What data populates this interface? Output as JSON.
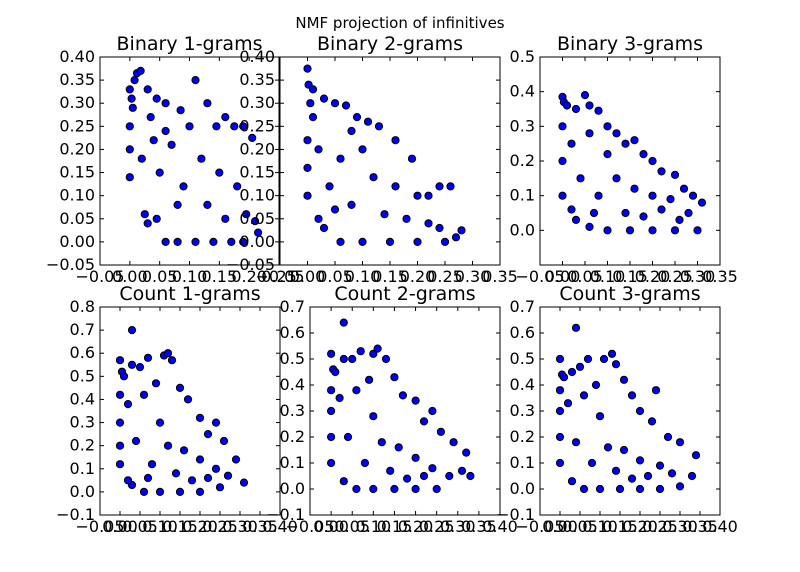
{
  "figure": {
    "title": "NMF projection of infinitives",
    "marker_color": "#0000ff",
    "marker_edge_color": "#000000"
  },
  "chart_data": [
    {
      "type": "scatter",
      "title": "Binary 1-grams",
      "xlabel": "",
      "ylabel": "",
      "xlim": [
        -0.05,
        0.25
      ],
      "ylim": [
        -0.05,
        0.4
      ],
      "xticks": [
        "−0.05",
        "0.00",
        "0.05",
        "0.10",
        "0.15",
        "0.20",
        "0.25"
      ],
      "yticks": [
        "−0.05",
        "0.00",
        "0.05",
        "0.10",
        "0.15",
        "0.20",
        "0.25",
        "0.30",
        "0.35",
        "0.40"
      ],
      "xtick_values": [
        -0.05,
        0.0,
        0.05,
        0.1,
        0.15,
        0.2,
        0.25
      ],
      "ytick_values": [
        -0.05,
        0.0,
        0.05,
        0.1,
        0.15,
        0.2,
        0.25,
        0.3,
        0.35,
        0.4
      ],
      "grid": false,
      "points": [
        [
          0.0,
          0.33
        ],
        [
          0.003,
          0.31
        ],
        [
          0.008,
          0.35
        ],
        [
          0.012,
          0.365
        ],
        [
          0.018,
          0.37
        ],
        [
          0.03,
          0.33
        ],
        [
          0.045,
          0.31
        ],
        [
          0.06,
          0.3
        ],
        [
          0.085,
          0.285
        ],
        [
          0.11,
          0.35
        ],
        [
          0.13,
          0.3
        ],
        [
          0.145,
          0.25
        ],
        [
          0.16,
          0.27
        ],
        [
          0.175,
          0.25
        ],
        [
          0.19,
          0.25
        ],
        [
          0.205,
          0.225
        ],
        [
          0.21,
          0.045
        ],
        [
          0.215,
          0.02
        ],
        [
          0.19,
          0.0
        ],
        [
          0.17,
          0.0
        ],
        [
          0.14,
          0.0
        ],
        [
          0.11,
          0.0
        ],
        [
          0.08,
          0.0
        ],
        [
          0.06,
          0.0
        ],
        [
          0.045,
          0.05
        ],
        [
          0.03,
          0.04
        ],
        [
          0.025,
          0.06
        ],
        [
          0.0,
          0.14
        ],
        [
          0.0,
          0.2
        ],
        [
          0.0,
          0.25
        ],
        [
          0.02,
          0.18
        ],
        [
          0.04,
          0.22
        ],
        [
          0.05,
          0.15
        ],
        [
          0.07,
          0.21
        ],
        [
          0.09,
          0.12
        ],
        [
          0.1,
          0.25
        ],
        [
          0.12,
          0.18
        ],
        [
          0.13,
          0.08
        ],
        [
          0.15,
          0.15
        ],
        [
          0.16,
          0.05
        ],
        [
          0.18,
          0.12
        ],
        [
          0.195,
          0.06
        ],
        [
          0.08,
          0.08
        ],
        [
          0.06,
          0.24
        ],
        [
          0.005,
          0.29
        ],
        [
          0.035,
          0.27
        ]
      ]
    },
    {
      "type": "scatter",
      "title": "Binary 2-grams",
      "xlabel": "",
      "ylabel": "",
      "xlim": [
        -0.05,
        0.35
      ],
      "ylim": [
        -0.05,
        0.4
      ],
      "xticks": [
        "−0.05",
        "0.00",
        "0.05",
        "0.10",
        "0.15",
        "0.20",
        "0.25",
        "0.30",
        "0.35"
      ],
      "yticks": [
        "−0.05",
        "0.00",
        "0.05",
        "0.10",
        "0.15",
        "0.20",
        "0.25",
        "0.30",
        "0.35",
        "0.40"
      ],
      "xtick_values": [
        -0.05,
        0.0,
        0.05,
        0.1,
        0.15,
        0.2,
        0.25,
        0.3,
        0.35
      ],
      "ytick_values": [
        -0.05,
        0.0,
        0.05,
        0.1,
        0.15,
        0.2,
        0.25,
        0.3,
        0.35,
        0.4
      ],
      "grid": false,
      "points": [
        [
          0.0,
          0.375
        ],
        [
          0.002,
          0.34
        ],
        [
          0.005,
          0.3
        ],
        [
          0.01,
          0.33
        ],
        [
          0.03,
          0.31
        ],
        [
          0.05,
          0.3
        ],
        [
          0.07,
          0.295
        ],
        [
          0.09,
          0.27
        ],
        [
          0.11,
          0.26
        ],
        [
          0.13,
          0.25
        ],
        [
          0.16,
          0.22
        ],
        [
          0.19,
          0.18
        ],
        [
          0.22,
          0.1
        ],
        [
          0.24,
          0.12
        ],
        [
          0.26,
          0.12
        ],
        [
          0.28,
          0.025
        ],
        [
          0.27,
          0.01
        ],
        [
          0.25,
          0.0
        ],
        [
          0.2,
          0.0
        ],
        [
          0.15,
          0.0
        ],
        [
          0.1,
          0.0
        ],
        [
          0.06,
          0.0
        ],
        [
          0.03,
          0.03
        ],
        [
          0.02,
          0.05
        ],
        [
          0.0,
          0.1
        ],
        [
          0.0,
          0.16
        ],
        [
          0.0,
          0.22
        ],
        [
          0.02,
          0.2
        ],
        [
          0.04,
          0.12
        ],
        [
          0.06,
          0.18
        ],
        [
          0.08,
          0.08
        ],
        [
          0.1,
          0.2
        ],
        [
          0.12,
          0.14
        ],
        [
          0.14,
          0.06
        ],
        [
          0.16,
          0.12
        ],
        [
          0.18,
          0.05
        ],
        [
          0.2,
          0.1
        ],
        [
          0.22,
          0.04
        ],
        [
          0.24,
          0.03
        ],
        [
          0.08,
          0.24
        ],
        [
          0.05,
          0.07
        ],
        [
          0.01,
          0.27
        ]
      ]
    },
    {
      "type": "scatter",
      "title": "Binary 3-grams",
      "xlabel": "",
      "ylabel": "",
      "xlim": [
        -0.05,
        0.35
      ],
      "ylim": [
        -0.1,
        0.5
      ],
      "xticks": [
        "−0.05",
        "0.00",
        "0.05",
        "0.10",
        "0.15",
        "0.20",
        "0.25",
        "0.30",
        "0.35"
      ],
      "yticks": [
        "0.0",
        "0.1",
        "0.2",
        "0.3",
        "0.4",
        "0.5"
      ],
      "xtick_values": [
        -0.05,
        0.0,
        0.05,
        0.1,
        0.15,
        0.2,
        0.25,
        0.3,
        0.35
      ],
      "ytick_values": [
        0.0,
        0.1,
        0.2,
        0.3,
        0.4,
        0.5
      ],
      "grid": false,
      "points": [
        [
          0.0,
          0.385
        ],
        [
          0.003,
          0.37
        ],
        [
          0.01,
          0.36
        ],
        [
          0.03,
          0.35
        ],
        [
          0.05,
          0.39
        ],
        [
          0.06,
          0.36
        ],
        [
          0.08,
          0.345
        ],
        [
          0.1,
          0.3
        ],
        [
          0.12,
          0.28
        ],
        [
          0.14,
          0.25
        ],
        [
          0.16,
          0.26
        ],
        [
          0.18,
          0.22
        ],
        [
          0.2,
          0.2
        ],
        [
          0.22,
          0.17
        ],
        [
          0.25,
          0.16
        ],
        [
          0.27,
          0.12
        ],
        [
          0.29,
          0.1
        ],
        [
          0.31,
          0.08
        ],
        [
          0.3,
          0.0
        ],
        [
          0.25,
          0.0
        ],
        [
          0.2,
          0.0
        ],
        [
          0.15,
          0.0
        ],
        [
          0.1,
          0.0
        ],
        [
          0.06,
          0.01
        ],
        [
          0.03,
          0.03
        ],
        [
          0.02,
          0.06
        ],
        [
          0.0,
          0.1
        ],
        [
          0.0,
          0.2
        ],
        [
          0.0,
          0.3
        ],
        [
          0.02,
          0.25
        ],
        [
          0.04,
          0.15
        ],
        [
          0.06,
          0.28
        ],
        [
          0.08,
          0.1
        ],
        [
          0.1,
          0.22
        ],
        [
          0.12,
          0.15
        ],
        [
          0.14,
          0.05
        ],
        [
          0.16,
          0.12
        ],
        [
          0.18,
          0.04
        ],
        [
          0.2,
          0.1
        ],
        [
          0.22,
          0.06
        ],
        [
          0.24,
          0.09
        ],
        [
          0.26,
          0.03
        ],
        [
          0.28,
          0.05
        ],
        [
          0.07,
          0.05
        ]
      ]
    },
    {
      "type": "scatter",
      "title": "Count 1-grams",
      "xlabel": "",
      "ylabel": "",
      "xlim": [
        -0.05,
        0.4
      ],
      "ylim": [
        -0.1,
        0.8
      ],
      "xticks": [
        "−0.05",
        "0.00",
        "0.05",
        "0.10",
        "0.15",
        "0.20",
        "0.25",
        "0.30",
        "0.35",
        "0.40"
      ],
      "yticks": [
        "−0.1",
        "0.0",
        "0.1",
        "0.2",
        "0.3",
        "0.4",
        "0.5",
        "0.6",
        "0.7",
        "0.8"
      ],
      "xtick_values": [
        -0.05,
        0.0,
        0.05,
        0.1,
        0.15,
        0.2,
        0.25,
        0.3,
        0.35,
        0.4
      ],
      "ytick_values": [
        -0.1,
        0.0,
        0.1,
        0.2,
        0.3,
        0.4,
        0.5,
        0.6,
        0.7,
        0.8
      ],
      "grid": false,
      "points": [
        [
          0.03,
          0.7
        ],
        [
          0.0,
          0.57
        ],
        [
          0.005,
          0.52
        ],
        [
          0.01,
          0.5
        ],
        [
          0.03,
          0.55
        ],
        [
          0.05,
          0.54
        ],
        [
          0.07,
          0.58
        ],
        [
          0.09,
          0.47
        ],
        [
          0.11,
          0.59
        ],
        [
          0.12,
          0.6
        ],
        [
          0.13,
          0.57
        ],
        [
          0.15,
          0.45
        ],
        [
          0.17,
          0.4
        ],
        [
          0.2,
          0.32
        ],
        [
          0.22,
          0.25
        ],
        [
          0.24,
          0.3
        ],
        [
          0.26,
          0.22
        ],
        [
          0.29,
          0.14
        ],
        [
          0.31,
          0.04
        ],
        [
          0.27,
          0.07
        ],
        [
          0.25,
          0.02
        ],
        [
          0.2,
          0.0
        ],
        [
          0.15,
          0.0
        ],
        [
          0.1,
          0.0
        ],
        [
          0.06,
          0.0
        ],
        [
          0.03,
          0.03
        ],
        [
          0.02,
          0.05
        ],
        [
          0.0,
          0.12
        ],
        [
          0.0,
          0.2
        ],
        [
          0.0,
          0.3
        ],
        [
          0.0,
          0.42
        ],
        [
          0.02,
          0.38
        ],
        [
          0.04,
          0.22
        ],
        [
          0.06,
          0.42
        ],
        [
          0.08,
          0.12
        ],
        [
          0.1,
          0.3
        ],
        [
          0.12,
          0.2
        ],
        [
          0.14,
          0.08
        ],
        [
          0.16,
          0.18
        ],
        [
          0.18,
          0.05
        ],
        [
          0.2,
          0.14
        ],
        [
          0.22,
          0.06
        ],
        [
          0.24,
          0.1
        ],
        [
          0.07,
          0.06
        ]
      ]
    },
    {
      "type": "scatter",
      "title": "Count 2-grams",
      "xlabel": "",
      "ylabel": "",
      "xlim": [
        -0.05,
        0.4
      ],
      "ylim": [
        -0.1,
        0.7
      ],
      "xticks": [
        "−0.05",
        "0.00",
        "0.05",
        "0.10",
        "0.15",
        "0.20",
        "0.25",
        "0.30",
        "0.35",
        "0.40"
      ],
      "yticks": [
        "−0.1",
        "0.0",
        "0.1",
        "0.2",
        "0.3",
        "0.4",
        "0.5",
        "0.6",
        "0.7"
      ],
      "xtick_values": [
        -0.05,
        0.0,
        0.05,
        0.1,
        0.15,
        0.2,
        0.25,
        0.3,
        0.35,
        0.4
      ],
      "ytick_values": [
        -0.1,
        0.0,
        0.1,
        0.2,
        0.3,
        0.4,
        0.5,
        0.6,
        0.7
      ],
      "grid": false,
      "points": [
        [
          0.03,
          0.64
        ],
        [
          0.0,
          0.52
        ],
        [
          0.005,
          0.46
        ],
        [
          0.01,
          0.45
        ],
        [
          0.03,
          0.5
        ],
        [
          0.05,
          0.5
        ],
        [
          0.07,
          0.53
        ],
        [
          0.09,
          0.42
        ],
        [
          0.1,
          0.52
        ],
        [
          0.11,
          0.54
        ],
        [
          0.13,
          0.5
        ],
        [
          0.15,
          0.43
        ],
        [
          0.17,
          0.36
        ],
        [
          0.2,
          0.34
        ],
        [
          0.22,
          0.26
        ],
        [
          0.24,
          0.3
        ],
        [
          0.26,
          0.22
        ],
        [
          0.29,
          0.18
        ],
        [
          0.32,
          0.14
        ],
        [
          0.31,
          0.07
        ],
        [
          0.28,
          0.05
        ],
        [
          0.25,
          0.0
        ],
        [
          0.2,
          0.0
        ],
        [
          0.15,
          0.0
        ],
        [
          0.1,
          0.0
        ],
        [
          0.06,
          0.0
        ],
        [
          0.03,
          0.03
        ],
        [
          0.0,
          0.1
        ],
        [
          0.0,
          0.2
        ],
        [
          0.0,
          0.3
        ],
        [
          0.0,
          0.38
        ],
        [
          0.02,
          0.35
        ],
        [
          0.04,
          0.2
        ],
        [
          0.06,
          0.38
        ],
        [
          0.08,
          0.1
        ],
        [
          0.1,
          0.28
        ],
        [
          0.12,
          0.18
        ],
        [
          0.14,
          0.07
        ],
        [
          0.16,
          0.16
        ],
        [
          0.18,
          0.04
        ],
        [
          0.2,
          0.12
        ],
        [
          0.22,
          0.05
        ],
        [
          0.24,
          0.08
        ],
        [
          0.33,
          0.05
        ]
      ]
    },
    {
      "type": "scatter",
      "title": "Count 3-grams",
      "xlabel": "",
      "ylabel": "",
      "xlim": [
        -0.05,
        0.4
      ],
      "ylim": [
        -0.1,
        0.7
      ],
      "xticks": [
        "−0.05",
        "0.00",
        "0.05",
        "0.10",
        "0.15",
        "0.20",
        "0.25",
        "0.30",
        "0.35",
        "0.40"
      ],
      "yticks": [
        "−0.1",
        "0.0",
        "0.1",
        "0.2",
        "0.3",
        "0.4",
        "0.5",
        "0.6",
        "0.7"
      ],
      "xtick_values": [
        -0.05,
        0.0,
        0.05,
        0.1,
        0.15,
        0.2,
        0.25,
        0.3,
        0.35,
        0.4
      ],
      "ytick_values": [
        -0.1,
        0.0,
        0.1,
        0.2,
        0.3,
        0.4,
        0.5,
        0.6,
        0.7
      ],
      "grid": false,
      "points": [
        [
          0.04,
          0.62
        ],
        [
          0.0,
          0.5
        ],
        [
          0.005,
          0.44
        ],
        [
          0.01,
          0.43
        ],
        [
          0.03,
          0.45
        ],
        [
          0.05,
          0.47
        ],
        [
          0.07,
          0.5
        ],
        [
          0.09,
          0.4
        ],
        [
          0.11,
          0.5
        ],
        [
          0.13,
          0.52
        ],
        [
          0.14,
          0.48
        ],
        [
          0.16,
          0.42
        ],
        [
          0.18,
          0.36
        ],
        [
          0.2,
          0.3
        ],
        [
          0.23,
          0.26
        ],
        [
          0.24,
          0.38
        ],
        [
          0.27,
          0.2
        ],
        [
          0.3,
          0.18
        ],
        [
          0.34,
          0.13
        ],
        [
          0.33,
          0.05
        ],
        [
          0.3,
          0.01
        ],
        [
          0.25,
          0.0
        ],
        [
          0.2,
          0.0
        ],
        [
          0.15,
          0.0
        ],
        [
          0.1,
          0.0
        ],
        [
          0.06,
          0.0
        ],
        [
          0.03,
          0.03
        ],
        [
          0.0,
          0.1
        ],
        [
          0.0,
          0.2
        ],
        [
          0.0,
          0.3
        ],
        [
          0.0,
          0.38
        ],
        [
          0.02,
          0.33
        ],
        [
          0.04,
          0.18
        ],
        [
          0.06,
          0.36
        ],
        [
          0.08,
          0.1
        ],
        [
          0.1,
          0.28
        ],
        [
          0.12,
          0.16
        ],
        [
          0.14,
          0.07
        ],
        [
          0.16,
          0.15
        ],
        [
          0.18,
          0.04
        ],
        [
          0.2,
          0.11
        ],
        [
          0.22,
          0.05
        ],
        [
          0.25,
          0.09
        ],
        [
          0.28,
          0.06
        ]
      ]
    }
  ]
}
